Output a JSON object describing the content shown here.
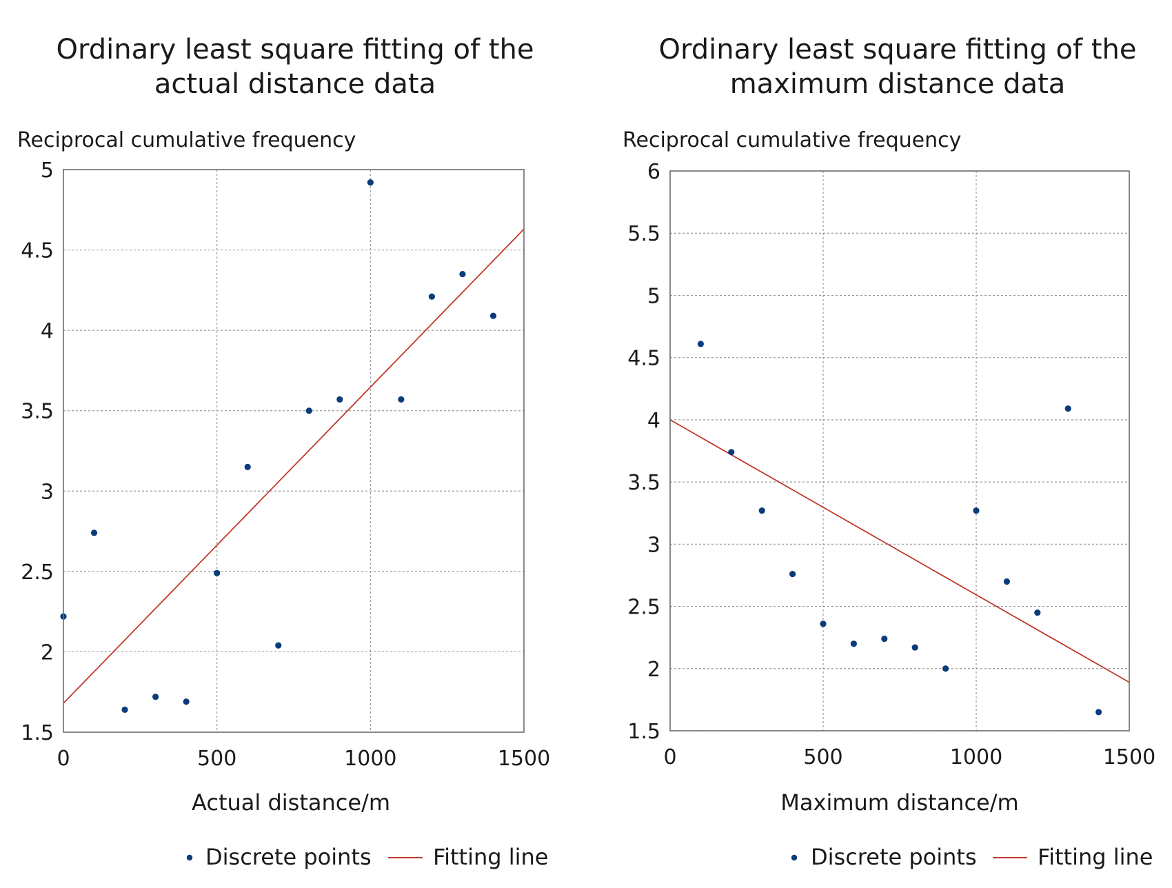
{
  "chart_data": [
    {
      "type": "scatter",
      "title_lines": [
        "Ordinary least square fitting of the",
        "actual distance data"
      ],
      "ylabel": "Reciprocal cumulative frequency",
      "xlabel": "Actual distance/m",
      "xlim": [
        0,
        1500
      ],
      "ylim": [
        1.5,
        5
      ],
      "xticks": [
        0,
        500,
        1000,
        1500
      ],
      "xtick_labels": [
        "0",
        "500",
        "1000",
        "1500"
      ],
      "yticks": [
        1.5,
        2,
        2.5,
        3,
        3.5,
        4,
        4.5,
        5
      ],
      "ytick_labels": [
        "1.5",
        "2",
        "2.5",
        "3",
        "3.5",
        "4",
        "4.5",
        "5"
      ],
      "grid": true,
      "series": [
        {
          "name": "Discrete points",
          "kind": "points",
          "color": "#0b3c7a",
          "x": [
            0,
            100,
            200,
            300,
            400,
            500,
            600,
            700,
            800,
            900,
            1000,
            1100,
            1200,
            1300,
            1400
          ],
          "y": [
            2.22,
            2.74,
            1.64,
            1.72,
            1.69,
            2.49,
            3.15,
            2.04,
            3.5,
            3.57,
            4.92,
            3.57,
            4.21,
            4.35,
            4.09
          ]
        },
        {
          "name": "Fitting line",
          "kind": "line",
          "color": "#c0392b",
          "x": [
            0,
            1500
          ],
          "y": [
            1.68,
            4.63
          ]
        }
      ],
      "legend": [
        "Discrete points",
        "Fitting line"
      ]
    },
    {
      "type": "scatter",
      "title_lines": [
        "Ordinary least square fitting of the",
        "maximum distance data"
      ],
      "ylabel": "Reciprocal cumulative frequency",
      "xlabel": "Maximum distance/m",
      "xlim": [
        0,
        1500
      ],
      "ylim": [
        1.5,
        6
      ],
      "xticks": [
        0,
        500,
        1000,
        1500
      ],
      "xtick_labels": [
        "0",
        "500",
        "1000",
        "1500"
      ],
      "yticks": [
        1.5,
        2,
        2.5,
        3,
        3.5,
        4,
        4.5,
        5,
        5.5,
        6
      ],
      "ytick_labels": [
        "1.5",
        "2",
        "2.5",
        "3",
        "3.5",
        "4",
        "4.5",
        "5",
        "5.5",
        "6"
      ],
      "grid": true,
      "series": [
        {
          "name": "Discrete points",
          "kind": "points",
          "color": "#0b3c7a",
          "x": [
            100,
            200,
            300,
            400,
            500,
            600,
            700,
            800,
            900,
            1000,
            1100,
            1200,
            1300,
            1400
          ],
          "y": [
            4.61,
            3.74,
            3.27,
            2.76,
            2.36,
            2.2,
            2.24,
            2.17,
            2.0,
            3.27,
            2.7,
            2.45,
            4.09,
            1.65
          ]
        },
        {
          "name": "Fitting line",
          "kind": "line",
          "color": "#c0392b",
          "x": [
            0,
            1500
          ],
          "y": [
            4.0,
            1.89
          ]
        }
      ],
      "legend": [
        "Discrete points",
        "Fitting line"
      ]
    }
  ]
}
